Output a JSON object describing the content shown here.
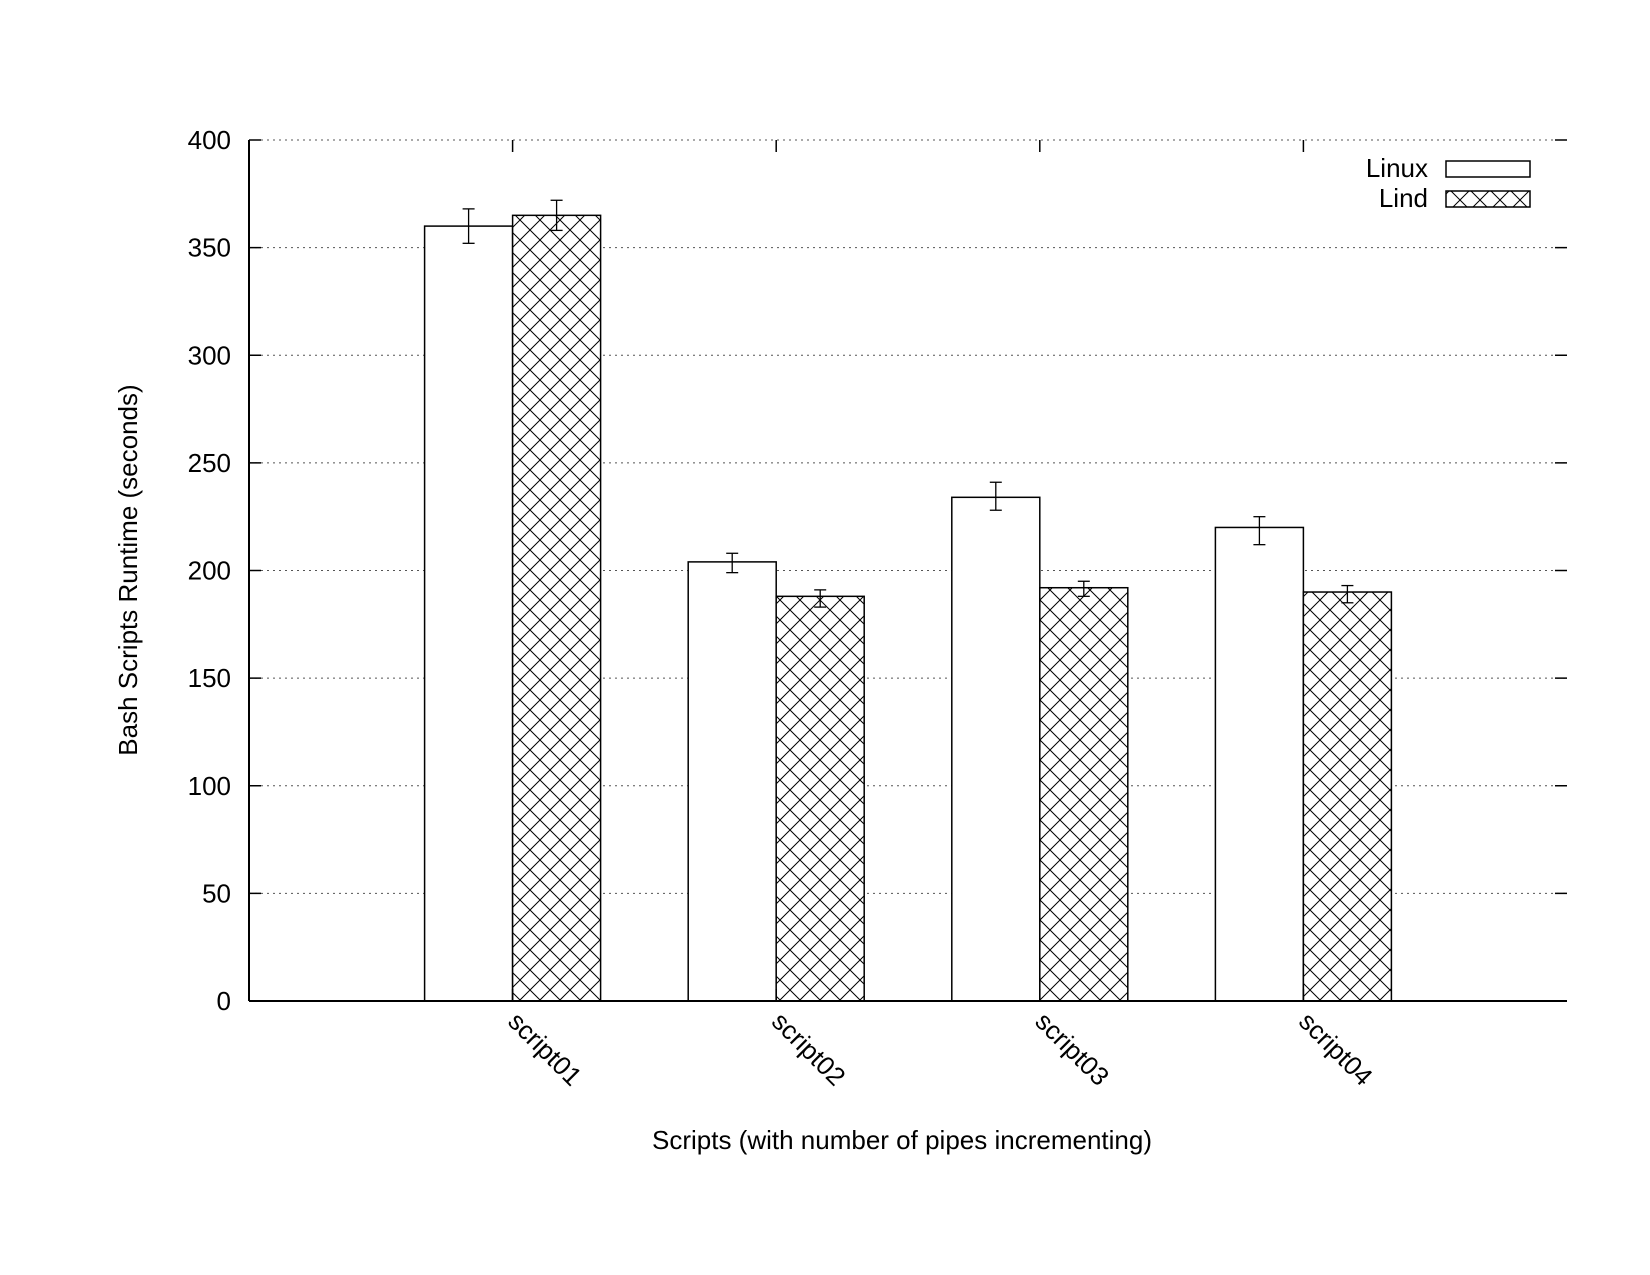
{
  "chart_data": {
    "type": "bar",
    "title": "",
    "xlabel": "Scripts (with number of pipes incrementing)",
    "ylabel": "Bash Scripts Runtime (seconds)",
    "ylim": [
      0,
      400
    ],
    "yticks": [
      0,
      50,
      100,
      150,
      200,
      250,
      300,
      350,
      400
    ],
    "grid": "horizontal dotted",
    "legend_position": "top-right",
    "categories": [
      "script01",
      "script02",
      "script03",
      "script04"
    ],
    "series": [
      {
        "name": "Linux",
        "pattern": "none",
        "fill": "#ffffff",
        "values": [
          360,
          204,
          234,
          220
        ],
        "error_low": [
          352,
          199,
          228,
          212
        ],
        "error_high": [
          368,
          208,
          241,
          225
        ]
      },
      {
        "name": "Lind",
        "pattern": "crosshatch",
        "fill": "#ffffff",
        "values": [
          365,
          188,
          192,
          190
        ],
        "error_low": [
          358,
          183,
          188,
          185
        ],
        "error_high": [
          372,
          191,
          195,
          193
        ]
      }
    ]
  }
}
